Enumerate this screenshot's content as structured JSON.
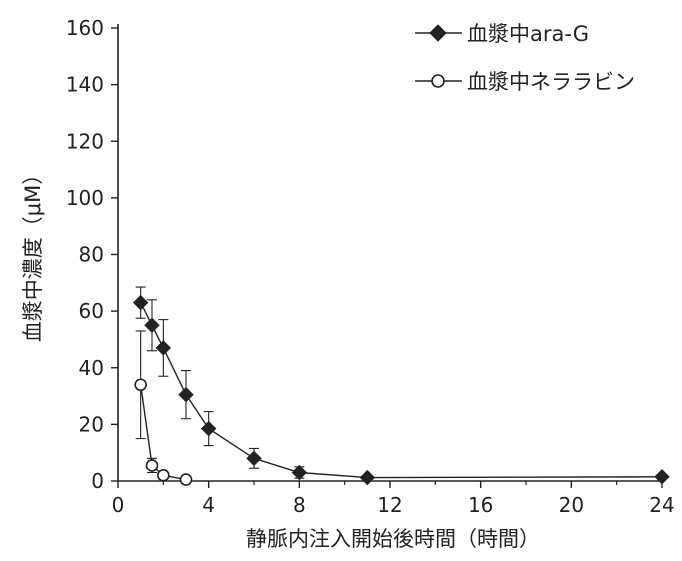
{
  "chart_data": {
    "type": "line",
    "title": "",
    "xlabel": "静脈内注入開始後時間（時間）",
    "ylabel": "血漿中濃度（μM）",
    "xlim": [
      0,
      24
    ],
    "ylim": [
      0,
      160
    ],
    "xticks": [
      0,
      4,
      8,
      12,
      16,
      20,
      24
    ],
    "yticks": [
      0,
      20,
      40,
      60,
      80,
      100,
      120,
      140,
      160
    ],
    "grid": false,
    "legend_position": "top-right",
    "series": [
      {
        "name": "血漿中ara-G",
        "marker": "filled-diamond",
        "color": "#222222",
        "points": [
          {
            "x": 1.0,
            "y": 63,
            "err": 5.5
          },
          {
            "x": 1.5,
            "y": 55,
            "err": 9
          },
          {
            "x": 2.0,
            "y": 47,
            "err": 10
          },
          {
            "x": 3.0,
            "y": 30.5,
            "err": 8.5
          },
          {
            "x": 4.0,
            "y": 18.5,
            "err": 6
          },
          {
            "x": 6.0,
            "y": 8,
            "err": 3.5
          },
          {
            "x": 8.0,
            "y": 3,
            "err": 2
          },
          {
            "x": 11.0,
            "y": 1.2,
            "err": 0.5
          },
          {
            "x": 24.0,
            "y": 1.5,
            "err": 0
          }
        ]
      },
      {
        "name": "血漿中ネララビン",
        "marker": "open-circle",
        "color": "#222222",
        "points": [
          {
            "x": 1.0,
            "y": 34,
            "err": 19
          },
          {
            "x": 1.5,
            "y": 5.5,
            "err": 2.5
          },
          {
            "x": 2.0,
            "y": 2,
            "err": 0
          },
          {
            "x": 3.0,
            "y": 0.5,
            "err": 0
          }
        ]
      }
    ]
  }
}
